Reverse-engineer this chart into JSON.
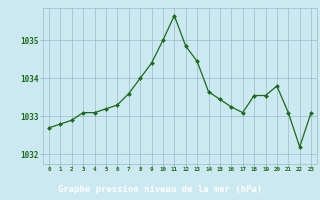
{
  "x": [
    0,
    1,
    2,
    3,
    4,
    5,
    6,
    7,
    8,
    9,
    10,
    11,
    12,
    13,
    14,
    15,
    16,
    17,
    18,
    19,
    20,
    21,
    22,
    23
  ],
  "y": [
    1032.7,
    1032.8,
    1032.9,
    1033.1,
    1033.1,
    1033.2,
    1033.3,
    1033.6,
    1034.0,
    1034.4,
    1035.0,
    1035.65,
    1034.85,
    1034.45,
    1033.65,
    1033.45,
    1033.25,
    1033.1,
    1033.55,
    1033.55,
    1033.8,
    1033.1,
    1032.2,
    1033.1
  ],
  "line_color": "#1a6b1a",
  "marker": "D",
  "marker_size": 2.0,
  "bg_color": "#cce8f0",
  "grid_color": "#99bbcc",
  "tick_label_color": "#1a6b1a",
  "xlabel": "Graphe pression niveau de la mer (hPa)",
  "xlabel_bg": "#2d6b2d",
  "xlabel_fg": "#ffffff",
  "ylim": [
    1031.75,
    1035.85
  ],
  "yticks": [
    1032,
    1033,
    1034,
    1035
  ],
  "xticks": [
    0,
    1,
    2,
    3,
    4,
    5,
    6,
    7,
    8,
    9,
    10,
    11,
    12,
    13,
    14,
    15,
    16,
    17,
    18,
    19,
    20,
    21,
    22,
    23
  ]
}
